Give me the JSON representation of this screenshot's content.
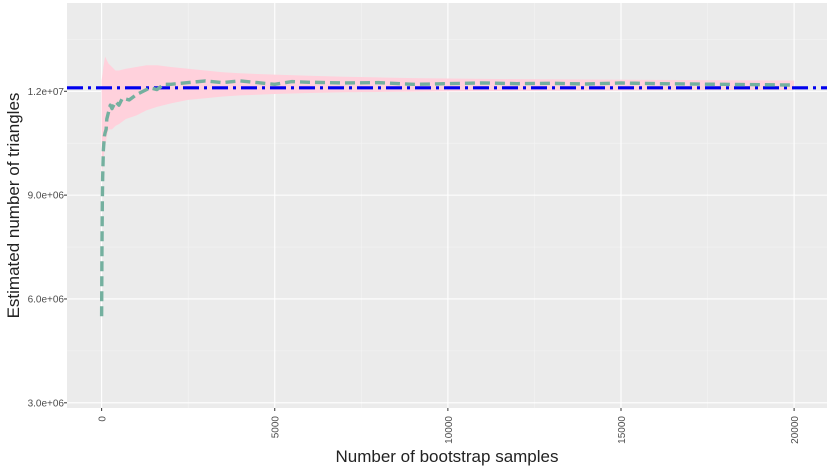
{
  "chart_data": {
    "type": "line",
    "title": "",
    "xlabel": "Number of bootstrap samples",
    "ylabel": "Estimated number of triangles",
    "xlim": [
      -1000,
      20950
    ],
    "ylim": [
      2850000,
      14550000
    ],
    "x_ticks": [
      0,
      5000,
      10000,
      15000,
      20000
    ],
    "x_tick_labels": [
      "0",
      "5000",
      "10000",
      "15000",
      "20000"
    ],
    "y_ticks": [
      3000000,
      6000000,
      9000000,
      12000000
    ],
    "y_tick_labels": [
      "3.0e+06",
      "6.0e+06",
      "9.0e+06",
      "1.2e+07"
    ],
    "grid": true,
    "legend": "none",
    "reference_line": {
      "value": 12100000,
      "style": "dash-dot",
      "color": "#0000ee"
    },
    "series": [
      {
        "kind": "band",
        "color": "#ffd1dc",
        "x": [
          0,
          50,
          100,
          150,
          200,
          300,
          400,
          500,
          700,
          1000,
          1300,
          1600,
          2000,
          2500,
          3000,
          3500,
          4000,
          5000,
          6000,
          7000,
          8000,
          9000,
          10000,
          12000,
          14000,
          16000,
          18000,
          20000
        ],
        "lower": [
          9600000,
          10000000,
          10400000,
          10700000,
          10900000,
          10900000,
          11000000,
          11050000,
          11200000,
          11300000,
          11450000,
          11550000,
          11650000,
          11750000,
          11800000,
          11850000,
          11880000,
          11920000,
          11950000,
          11970000,
          11980000,
          11990000,
          12000000,
          12010000,
          12020000,
          12030000,
          12035000,
          12040000
        ],
        "upper": [
          12300000,
          12700000,
          13000000,
          12900000,
          12800000,
          12700000,
          12600000,
          12600000,
          12650000,
          12700000,
          12750000,
          12750000,
          12700000,
          12650000,
          12600000,
          12550000,
          12520000,
          12480000,
          12450000,
          12420000,
          12400000,
          12380000,
          12370000,
          12350000,
          12340000,
          12330000,
          12320000,
          12310000
        ]
      },
      {
        "kind": "line",
        "style": "dashed",
        "color": "#74b09f",
        "x": [
          0,
          10,
          20,
          30,
          50,
          80,
          100,
          130,
          150,
          200,
          250,
          300,
          400,
          500,
          600,
          800,
          1000,
          1200,
          1400,
          1600,
          1800,
          2000,
          2500,
          3000,
          3500,
          4000,
          4500,
          5000,
          5500,
          6000,
          7000,
          8000,
          9000,
          10000,
          11000,
          12000,
          13000,
          14000,
          15000,
          16000,
          17000,
          18000,
          19000,
          20000
        ],
        "y": [
          5500000,
          7500000,
          8800000,
          9500000,
          10300000,
          10700000,
          10800000,
          10900000,
          11200000,
          11400000,
          11600000,
          11500000,
          11700000,
          11600000,
          11800000,
          11750000,
          11900000,
          12000000,
          12100000,
          12050000,
          12200000,
          12200000,
          12250000,
          12300000,
          12250000,
          12300000,
          12250000,
          12200000,
          12280000,
          12260000,
          12240000,
          12250000,
          12200000,
          12220000,
          12240000,
          12220000,
          12230000,
          12210000,
          12240000,
          12220000,
          12210000,
          12200000,
          12190000,
          12180000
        ]
      }
    ]
  }
}
